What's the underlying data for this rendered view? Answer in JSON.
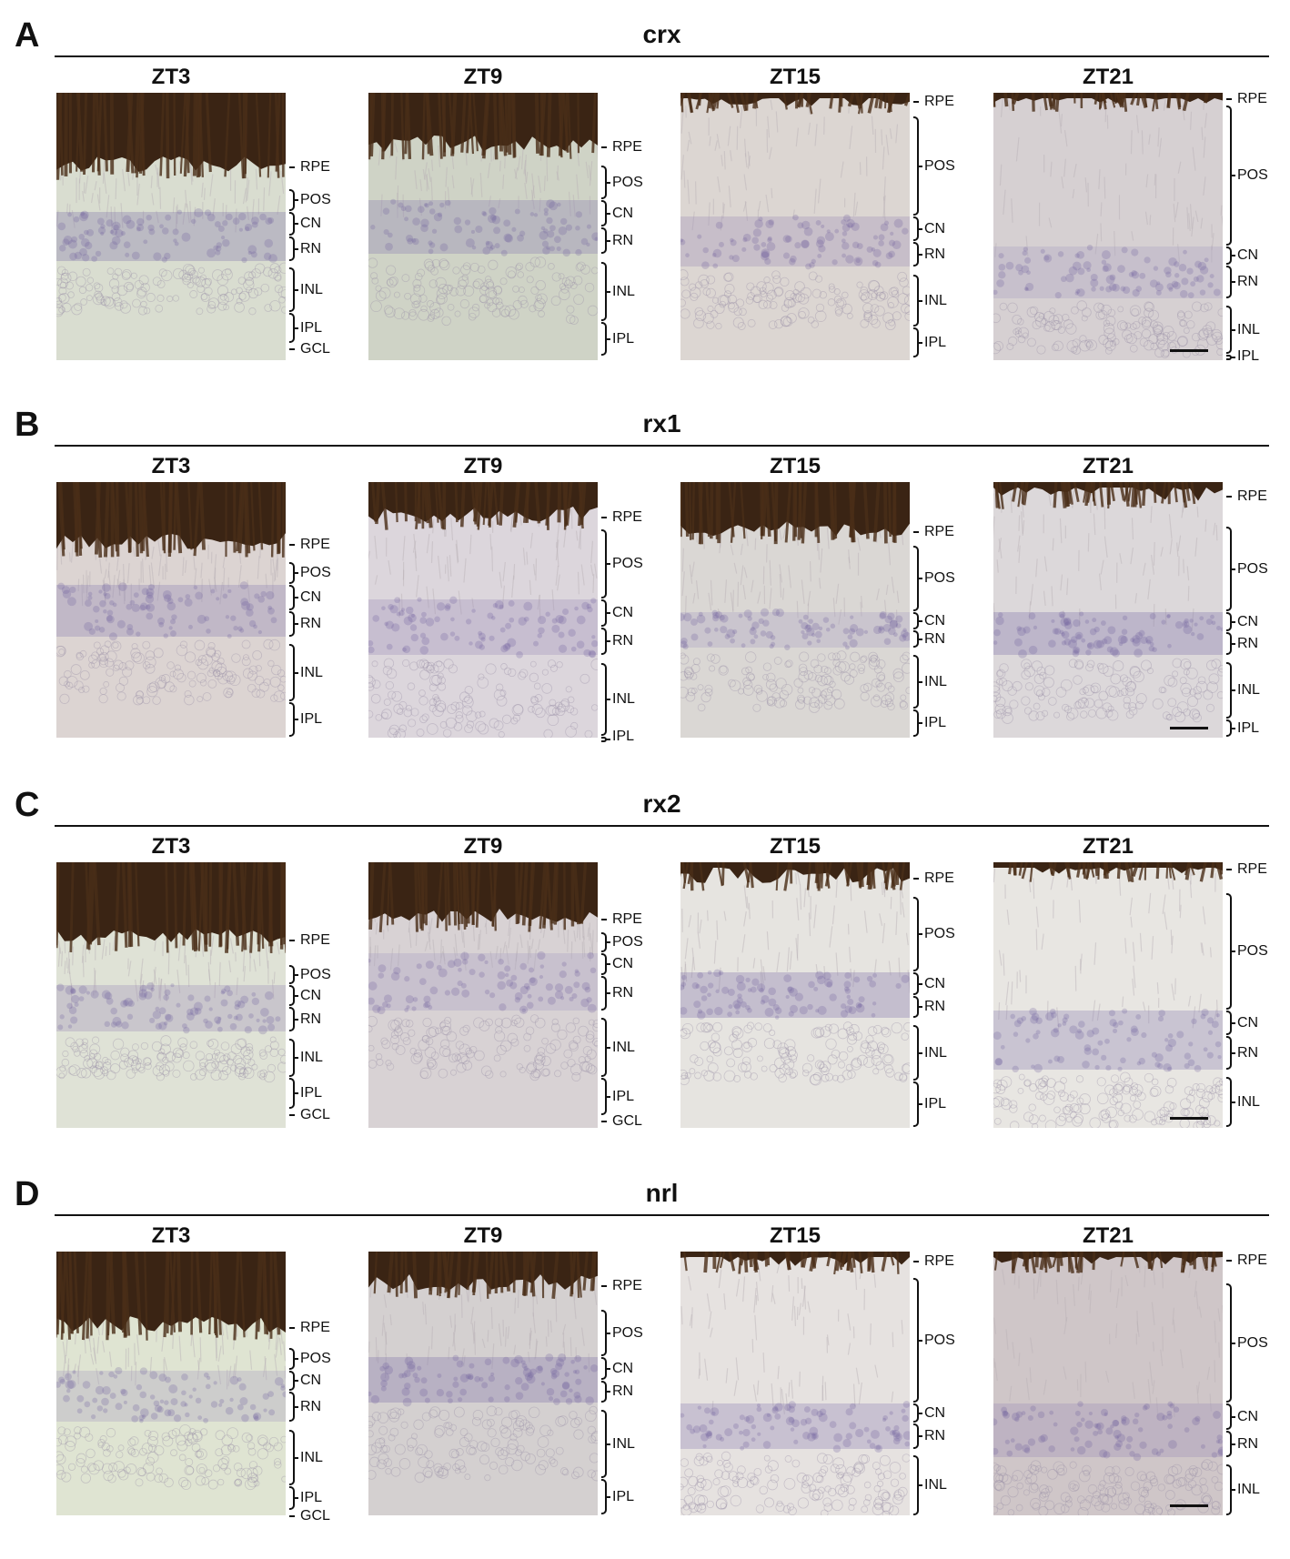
{
  "sections": [
    {
      "letter": "A",
      "gene": "crx",
      "panels": [
        {
          "time": "ZT3",
          "layers": [
            {
              "name": "RPE",
              "kind": "dash"
            },
            {
              "name": "POS",
              "kind": "bracket"
            },
            {
              "name": "CN",
              "kind": "bracket"
            },
            {
              "name": "RN",
              "kind": "bracket"
            },
            {
              "name": "INL",
              "kind": "bracket"
            },
            {
              "name": "IPL",
              "kind": "bracket"
            },
            {
              "name": "GCL",
              "kind": "dash"
            }
          ]
        },
        {
          "time": "ZT9",
          "layers": [
            {
              "name": "RPE",
              "kind": "dash"
            },
            {
              "name": "POS",
              "kind": "bracket"
            },
            {
              "name": "CN",
              "kind": "bracket"
            },
            {
              "name": "RN",
              "kind": "bracket"
            },
            {
              "name": "INL",
              "kind": "bracket"
            },
            {
              "name": "IPL",
              "kind": "bracket"
            }
          ]
        },
        {
          "time": "ZT15",
          "layers": [
            {
              "name": "RPE",
              "kind": "dash"
            },
            {
              "name": "POS",
              "kind": "bracket"
            },
            {
              "name": "CN",
              "kind": "bracket"
            },
            {
              "name": "RN",
              "kind": "bracket"
            },
            {
              "name": "INL",
              "kind": "bracket"
            },
            {
              "name": "IPL",
              "kind": "bracket"
            }
          ]
        },
        {
          "time": "ZT21",
          "scale_bar": true,
          "layers": [
            {
              "name": "RPE",
              "kind": "dash"
            },
            {
              "name": "POS",
              "kind": "bracket"
            },
            {
              "name": "CN",
              "kind": "bracket"
            },
            {
              "name": "RN",
              "kind": "bracket"
            },
            {
              "name": "INL",
              "kind": "bracket"
            },
            {
              "name": "IPL",
              "kind": "bracket"
            }
          ]
        }
      ]
    },
    {
      "letter": "B",
      "gene": "rx1",
      "panels": [
        {
          "time": "ZT3",
          "layers": [
            {
              "name": "RPE",
              "kind": "dash"
            },
            {
              "name": "POS",
              "kind": "bracket"
            },
            {
              "name": "CN",
              "kind": "bracket"
            },
            {
              "name": "RN",
              "kind": "bracket"
            },
            {
              "name": "INL",
              "kind": "bracket"
            },
            {
              "name": "IPL",
              "kind": "bracket"
            }
          ]
        },
        {
          "time": "ZT9",
          "layers": [
            {
              "name": "RPE",
              "kind": "dash"
            },
            {
              "name": "POS",
              "kind": "bracket"
            },
            {
              "name": "CN",
              "kind": "bracket"
            },
            {
              "name": "RN",
              "kind": "bracket"
            },
            {
              "name": "INL",
              "kind": "bracket"
            },
            {
              "name": "IPL",
              "kind": "bracket"
            }
          ]
        },
        {
          "time": "ZT15",
          "layers": [
            {
              "name": "RPE",
              "kind": "dash"
            },
            {
              "name": "POS",
              "kind": "bracket"
            },
            {
              "name": "CN",
              "kind": "bracket"
            },
            {
              "name": "RN",
              "kind": "bracket"
            },
            {
              "name": "INL",
              "kind": "bracket"
            },
            {
              "name": "IPL",
              "kind": "bracket"
            }
          ]
        },
        {
          "time": "ZT21",
          "scale_bar": true,
          "layers": [
            {
              "name": "RPE",
              "kind": "dash"
            },
            {
              "name": "POS",
              "kind": "bracket"
            },
            {
              "name": "CN",
              "kind": "bracket"
            },
            {
              "name": "RN",
              "kind": "bracket"
            },
            {
              "name": "INL",
              "kind": "bracket"
            },
            {
              "name": "IPL",
              "kind": "bracket"
            }
          ]
        }
      ]
    },
    {
      "letter": "C",
      "gene": "rx2",
      "panels": [
        {
          "time": "ZT3",
          "layers": [
            {
              "name": "RPE",
              "kind": "dash"
            },
            {
              "name": "POS",
              "kind": "bracket"
            },
            {
              "name": "CN",
              "kind": "bracket"
            },
            {
              "name": "RN",
              "kind": "bracket"
            },
            {
              "name": "INL",
              "kind": "bracket"
            },
            {
              "name": "IPL",
              "kind": "bracket"
            },
            {
              "name": "GCL",
              "kind": "dash"
            }
          ]
        },
        {
          "time": "ZT9",
          "layers": [
            {
              "name": "RPE",
              "kind": "dash"
            },
            {
              "name": "POS",
              "kind": "bracket"
            },
            {
              "name": "CN",
              "kind": "bracket"
            },
            {
              "name": "RN",
              "kind": "bracket"
            },
            {
              "name": "INL",
              "kind": "bracket"
            },
            {
              "name": "IPL",
              "kind": "bracket"
            },
            {
              "name": "GCL",
              "kind": "dash"
            }
          ]
        },
        {
          "time": "ZT15",
          "layers": [
            {
              "name": "RPE",
              "kind": "dash"
            },
            {
              "name": "POS",
              "kind": "bracket"
            },
            {
              "name": "CN",
              "kind": "bracket"
            },
            {
              "name": "RN",
              "kind": "bracket"
            },
            {
              "name": "INL",
              "kind": "bracket"
            },
            {
              "name": "IPL",
              "kind": "bracket"
            }
          ]
        },
        {
          "time": "ZT21",
          "scale_bar": true,
          "layers": [
            {
              "name": "RPE",
              "kind": "dash"
            },
            {
              "name": "POS",
              "kind": "bracket"
            },
            {
              "name": "CN",
              "kind": "bracket"
            },
            {
              "name": "RN",
              "kind": "bracket"
            },
            {
              "name": "INL",
              "kind": "bracket"
            }
          ]
        }
      ]
    },
    {
      "letter": "D",
      "gene": "nrl",
      "panels": [
        {
          "time": "ZT3",
          "layers": [
            {
              "name": "RPE",
              "kind": "dash"
            },
            {
              "name": "POS",
              "kind": "bracket"
            },
            {
              "name": "CN",
              "kind": "bracket"
            },
            {
              "name": "RN",
              "kind": "bracket"
            },
            {
              "name": "INL",
              "kind": "bracket"
            },
            {
              "name": "IPL",
              "kind": "bracket"
            },
            {
              "name": "GCL",
              "kind": "dash"
            }
          ]
        },
        {
          "time": "ZT9",
          "layers": [
            {
              "name": "RPE",
              "kind": "dash"
            },
            {
              "name": "POS",
              "kind": "bracket"
            },
            {
              "name": "CN",
              "kind": "bracket"
            },
            {
              "name": "RN",
              "kind": "bracket"
            },
            {
              "name": "INL",
              "kind": "bracket"
            },
            {
              "name": "IPL",
              "kind": "bracket"
            }
          ]
        },
        {
          "time": "ZT15",
          "layers": [
            {
              "name": "RPE",
              "kind": "dash"
            },
            {
              "name": "POS",
              "kind": "bracket"
            },
            {
              "name": "CN",
              "kind": "bracket"
            },
            {
              "name": "RN",
              "kind": "bracket"
            },
            {
              "name": "INL",
              "kind": "bracket"
            }
          ]
        },
        {
          "time": "ZT21",
          "scale_bar": true,
          "layers": [
            {
              "name": "RPE",
              "kind": "dash"
            },
            {
              "name": "POS",
              "kind": "bracket"
            },
            {
              "name": "CN",
              "kind": "bracket"
            },
            {
              "name": "RN",
              "kind": "bracket"
            },
            {
              "name": "INL",
              "kind": "bracket"
            }
          ]
        }
      ]
    }
  ]
}
